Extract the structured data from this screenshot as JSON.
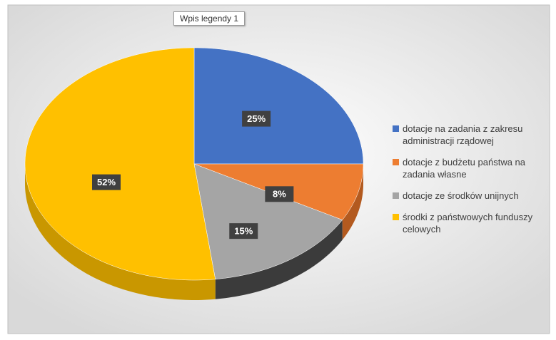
{
  "chart_data": {
    "type": "pie",
    "annotation": "Wpis legendy 1",
    "categories": [
      "dotacje na zadania z zakresu administracji rządowej",
      "dotacje z budżetu państwa na zadania własne",
      "dotacje ze środków unijnych",
      "środki z państwowych funduszy celowych"
    ],
    "values": [
      25,
      8,
      15,
      52
    ],
    "value_labels": [
      "25%",
      "8%",
      "15%",
      "52%"
    ],
    "colors": [
      "#4472c4",
      "#ed7d31",
      "#a5a5a5",
      "#ffc000"
    ],
    "side_colors": [
      "#2f5597",
      "#b35a1f",
      "#3b3b3b",
      "#c99700"
    ],
    "legend": "right"
  }
}
